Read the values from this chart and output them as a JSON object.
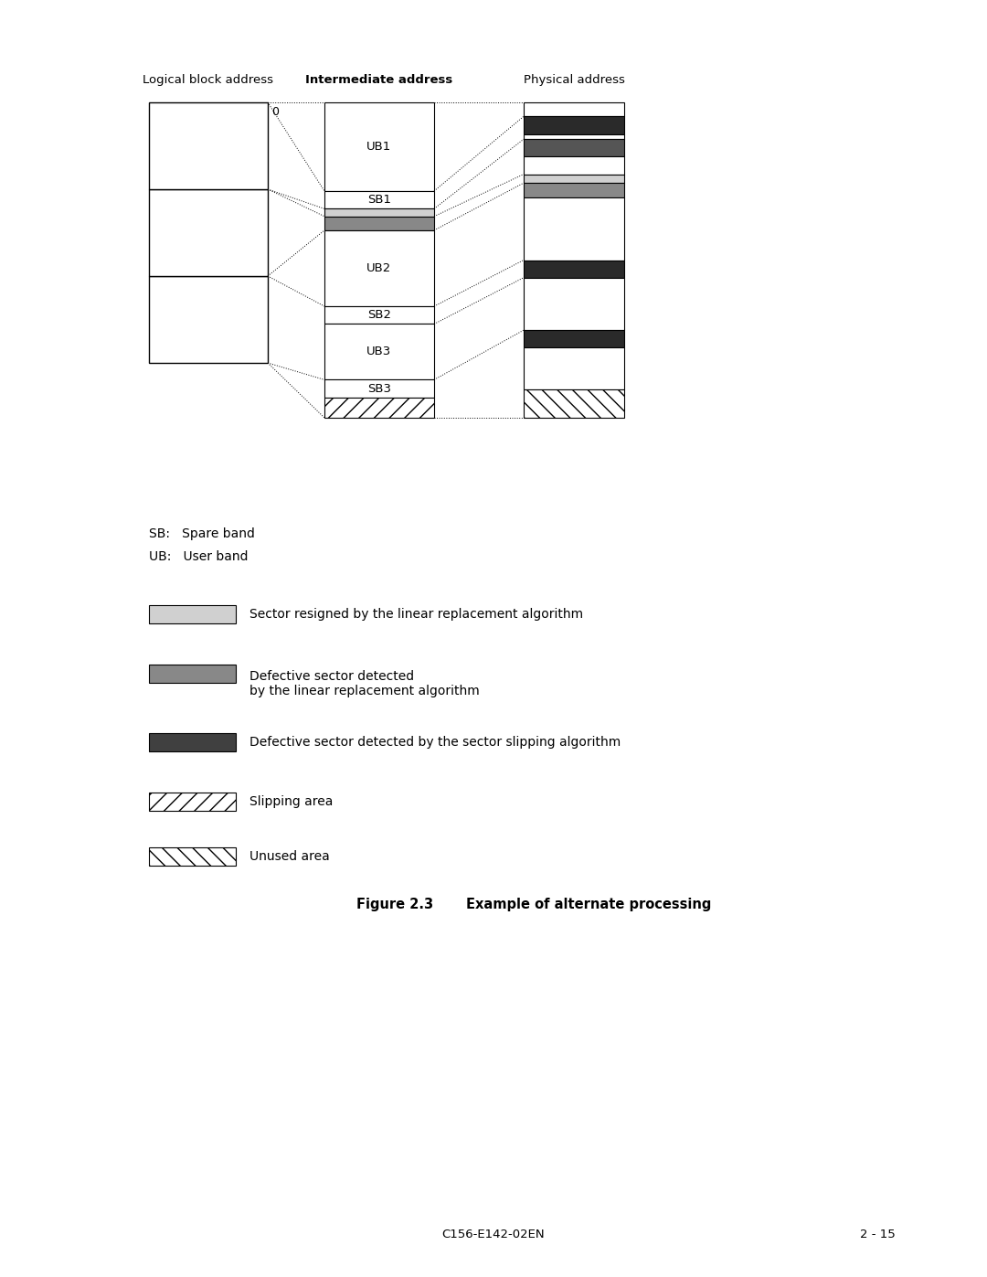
{
  "footer_left": "C156-E142-02EN",
  "footer_right": "2 - 15",
  "col1_header": "Logical block address",
  "col2_header": "Intermediate address",
  "col3_header": "Physical address"
}
